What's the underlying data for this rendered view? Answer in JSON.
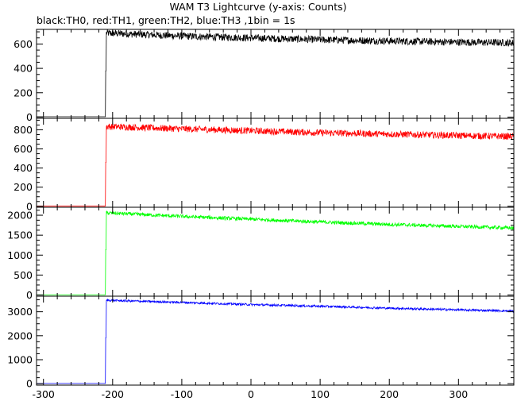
{
  "title": "WAM T3 Lightcurve (y-axis: Counts)",
  "subtitle": "black:TH0, red:TH1, green:TH2, blue:TH3 ,1bin = 1s",
  "chart_data": {
    "type": "line",
    "title": "WAM T3 Lightcurve (y-axis: Counts)",
    "subtitle": "black:TH0, red:TH1, green:TH2, blue:TH3 ,1bin = 1s",
    "xlim": [
      -310,
      380
    ],
    "x_ticks": [
      -300,
      -200,
      -100,
      0,
      100,
      200,
      300
    ],
    "panels": [
      {
        "name": "TH0",
        "color": "#000000",
        "ylim": [
          -10,
          720
        ],
        "y_ticks": [
          0,
          200,
          400,
          600
        ],
        "pre_level": 3,
        "onset_x": -210,
        "points": [
          {
            "x": -210,
            "y": 690
          },
          {
            "x": -100,
            "y": 665
          },
          {
            "x": 0,
            "y": 650
          },
          {
            "x": 100,
            "y": 635
          },
          {
            "x": 200,
            "y": 625
          },
          {
            "x": 300,
            "y": 615
          },
          {
            "x": 380,
            "y": 610
          }
        ],
        "noise": 30
      },
      {
        "name": "TH1",
        "color": "#ff0000",
        "ylim": [
          -10,
          920
        ],
        "y_ticks": [
          0,
          200,
          400,
          600,
          800
        ],
        "pre_level": 3,
        "onset_x": -210,
        "points": [
          {
            "x": -210,
            "y": 835
          },
          {
            "x": -100,
            "y": 810
          },
          {
            "x": 0,
            "y": 790
          },
          {
            "x": 100,
            "y": 770
          },
          {
            "x": 200,
            "y": 755
          },
          {
            "x": 300,
            "y": 740
          },
          {
            "x": 380,
            "y": 730
          }
        ],
        "noise": 35
      },
      {
        "name": "TH2",
        "color": "#00ff00",
        "ylim": [
          -30,
          2200
        ],
        "y_ticks": [
          0,
          500,
          1000,
          1500,
          2000
        ],
        "pre_level": 5,
        "onset_x": -210,
        "points": [
          {
            "x": -210,
            "y": 2060
          },
          {
            "x": -100,
            "y": 1970
          },
          {
            "x": 0,
            "y": 1900
          },
          {
            "x": 100,
            "y": 1830
          },
          {
            "x": 200,
            "y": 1770
          },
          {
            "x": 300,
            "y": 1720
          },
          {
            "x": 380,
            "y": 1680
          }
        ],
        "noise": 45
      },
      {
        "name": "TH3",
        "color": "#0000ff",
        "ylim": [
          -60,
          3650
        ],
        "y_ticks": [
          0,
          1000,
          2000,
          3000
        ],
        "pre_level": 10,
        "onset_x": -210,
        "points": [
          {
            "x": -210,
            "y": 3480
          },
          {
            "x": -100,
            "y": 3390
          },
          {
            "x": 0,
            "y": 3300
          },
          {
            "x": 100,
            "y": 3230
          },
          {
            "x": 200,
            "y": 3150
          },
          {
            "x": 300,
            "y": 3080
          },
          {
            "x": 380,
            "y": 3030
          }
        ],
        "noise": 45
      }
    ]
  }
}
